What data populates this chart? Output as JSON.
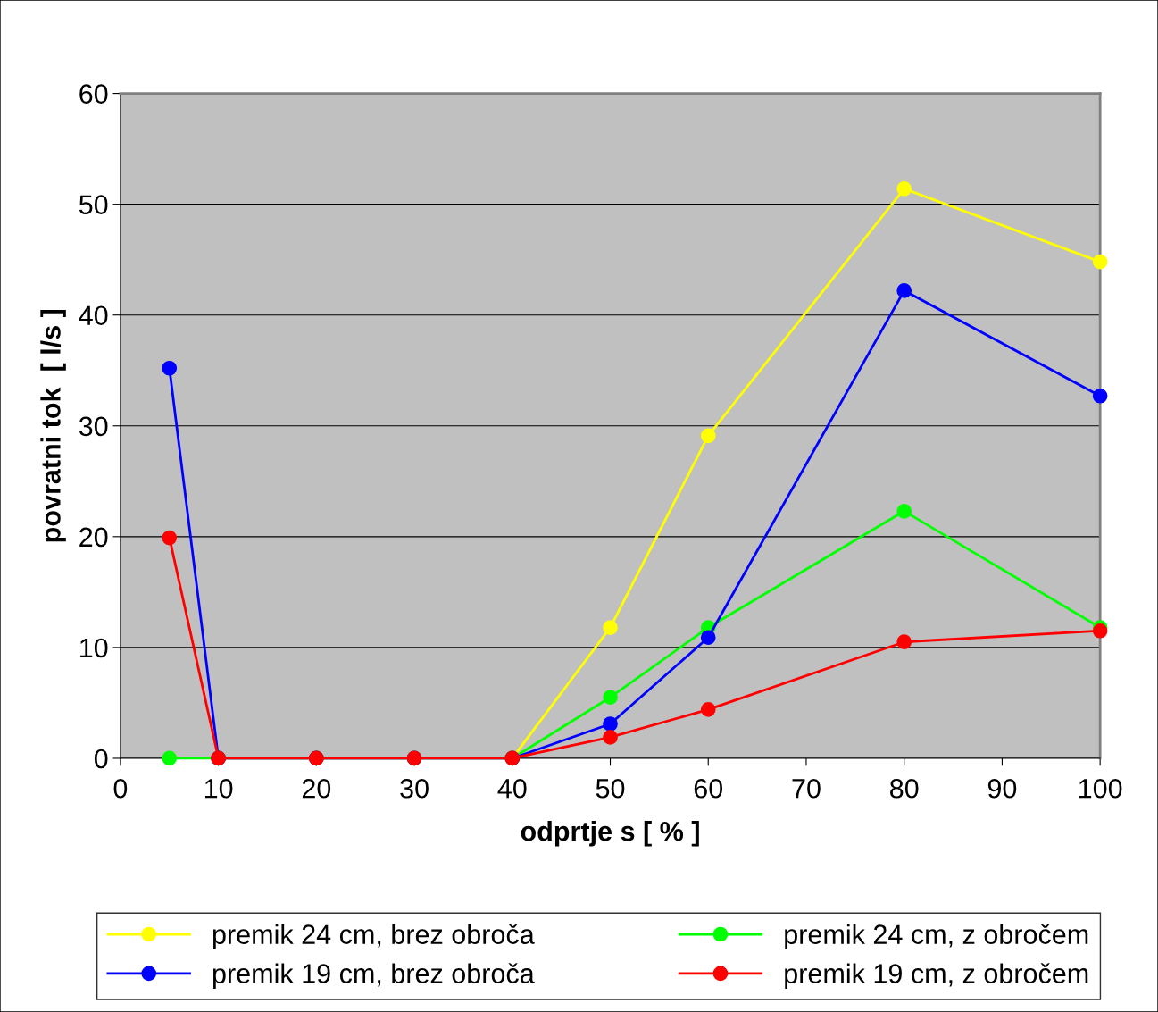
{
  "chart_data": {
    "type": "line",
    "xlabel": "odprtje s [ % ]",
    "ylabel": "povratni tok  [ l/s ]",
    "x": [
      5,
      10,
      20,
      30,
      40,
      50,
      60,
      80,
      100
    ],
    "series": [
      {
        "name": "premik 24 cm, brez obroča",
        "color": "#ffff00",
        "values": [
          null,
          null,
          null,
          null,
          0,
          11.8,
          29.1,
          51.4,
          44.8
        ]
      },
      {
        "name": "premik 24 cm, z obročem",
        "color": "#00ff00",
        "values": [
          0,
          0,
          0,
          0,
          0,
          5.5,
          11.8,
          22.3,
          11.8
        ]
      },
      {
        "name": "premik 19 cm, brez obroča",
        "color": "#0000ff",
        "values": [
          35.2,
          0,
          0,
          0,
          0,
          3.1,
          10.9,
          42.2,
          32.7
        ]
      },
      {
        "name": "premik 19 cm, z obročem",
        "color": "#ff0000",
        "values": [
          19.9,
          0,
          0,
          0,
          0,
          1.9,
          4.4,
          10.5,
          11.5
        ]
      }
    ],
    "xlim": [
      0,
      100
    ],
    "xticks": [
      0,
      10,
      20,
      30,
      40,
      50,
      60,
      70,
      80,
      90,
      100
    ],
    "ylim": [
      0,
      60
    ],
    "yticks": [
      0,
      10,
      20,
      30,
      40,
      50,
      60
    ],
    "grid": "y",
    "legend": "bottom",
    "marker": "circle",
    "line_style": "solid"
  }
}
